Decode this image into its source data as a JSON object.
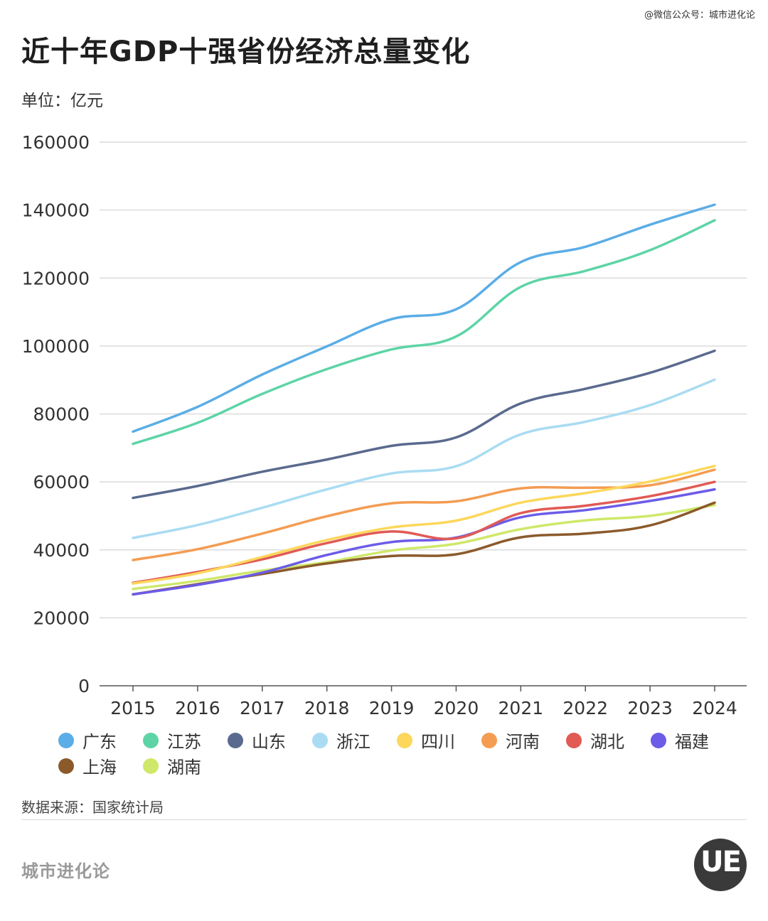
{
  "header": {
    "credit": "@微信公众号：城市进化论",
    "title": "近十年GDP十强省份经济总量变化",
    "unit": "单位：亿元"
  },
  "footer": {
    "source": "数据来源：国家统计局",
    "brand": "城市进化论",
    "logo_letters": "UE"
  },
  "chart_data": {
    "type": "line",
    "x": [
      "2015",
      "2016",
      "2017",
      "2018",
      "2019",
      "2020",
      "2021",
      "2022",
      "2023",
      "2024"
    ],
    "ylim": [
      0,
      160000
    ],
    "yticks": [
      "0",
      "20000",
      "40000",
      "60000",
      "80000",
      "100000",
      "120000",
      "140000",
      "160000"
    ],
    "grid": true,
    "legend_position": "bottom",
    "series": [
      {
        "name": "广东",
        "color": "#5aade6",
        "values": [
          74800,
          82100,
          91600,
          99900,
          107900,
          110800,
          124700,
          129200,
          135700,
          141600
        ]
      },
      {
        "name": "江苏",
        "color": "#5ed4a6",
        "values": [
          71200,
          77400,
          85900,
          93200,
          99000,
          102800,
          117400,
          122100,
          128200,
          137000
        ]
      },
      {
        "name": "山东",
        "color": "#5a6a8e",
        "values": [
          55300,
          58800,
          63000,
          66600,
          70600,
          73100,
          83100,
          87400,
          92100,
          98600
        ]
      },
      {
        "name": "浙江",
        "color": "#a9dcf2",
        "values": [
          43500,
          47300,
          52400,
          57800,
          62500,
          64600,
          74000,
          77700,
          82600,
          90100
        ]
      },
      {
        "name": "四川",
        "color": "#fcd75b",
        "values": [
          30100,
          33100,
          37900,
          42900,
          46600,
          48600,
          53900,
          56700,
          60100,
          64700
        ]
      },
      {
        "name": "河南",
        "color": "#f39c52",
        "values": [
          37000,
          40200,
          44800,
          49900,
          53700,
          54300,
          58100,
          58300,
          59000,
          63600
        ]
      },
      {
        "name": "湖北",
        "color": "#e15a54",
        "values": [
          30300,
          33500,
          37200,
          42000,
          45400,
          43400,
          50800,
          53000,
          55800,
          60000
        ]
      },
      {
        "name": "福建",
        "color": "#6c5ce7",
        "values": [
          26900,
          29700,
          33300,
          38500,
          42300,
          43600,
          49600,
          51700,
          54400,
          57800
        ]
      },
      {
        "name": "上海",
        "color": "#8b5a2b",
        "values": [
          26900,
          29900,
          32900,
          36000,
          38200,
          38700,
          43700,
          44800,
          47200,
          53900
        ]
      },
      {
        "name": "湖南",
        "color": "#cfe86a",
        "values": [
          28500,
          30900,
          33900,
          36400,
          39800,
          41800,
          46100,
          48700,
          50000,
          53200
        ]
      }
    ]
  }
}
